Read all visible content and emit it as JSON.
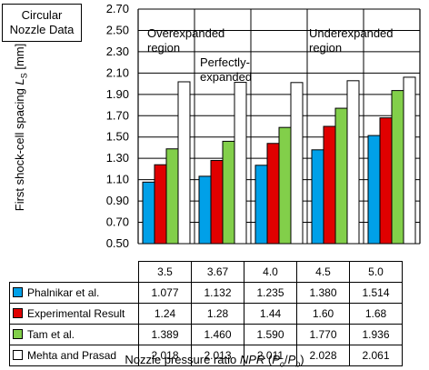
{
  "chart_data": {
    "type": "bar",
    "categories": [
      "3.5",
      "3.67",
      "4.0",
      "4.5",
      "5.0"
    ],
    "series": [
      {
        "name": "Phalnikar et al.",
        "color": "#00a0e8",
        "values": [
          1.077,
          1.132,
          1.235,
          1.38,
          1.514
        ],
        "labels": [
          "1.077",
          "1.132",
          "1.235",
          "1.380",
          "1.514"
        ]
      },
      {
        "name": "Experimental Result",
        "color": "#e00000",
        "values": [
          1.24,
          1.28,
          1.44,
          1.6,
          1.68
        ],
        "labels": [
          "1.24",
          "1.28",
          "1.44",
          "1.60",
          "1.68"
        ]
      },
      {
        "name": "Tam et al.",
        "color": "#82cf4a",
        "values": [
          1.389,
          1.46,
          1.59,
          1.77,
          1.936
        ],
        "labels": [
          "1.389",
          "1.460",
          "1.590",
          "1.770",
          "1.936"
        ]
      },
      {
        "name": "Mehta and Prasad",
        "color": "#ffffff",
        "values": [
          2.018,
          2.013,
          2.011,
          2.028,
          2.061
        ],
        "labels": [
          "2.018",
          "2.013",
          "2.011",
          "2.028",
          "2.061"
        ]
      }
    ],
    "ylim": [
      0.5,
      2.7
    ],
    "yticks": [
      "0.50",
      "0.70",
      "0.90",
      "1.10",
      "1.30",
      "1.50",
      "1.70",
      "1.90",
      "2.10",
      "2.30",
      "2.50",
      "2.70"
    ],
    "ylabel": {
      "main": "First shock-cell spacing ",
      "var": "L",
      "sub": "S",
      "unit": " [mm]"
    },
    "xlabel": {
      "main": "Nozzle pressure ratio ",
      "var": "NPR",
      "open": " (",
      "num": "P",
      "num_sub": "o",
      "slash": "/",
      "den": "P",
      "den_sub": "b",
      "close": ")"
    },
    "grid": true,
    "legend": "data-table"
  },
  "header_box": {
    "line1": "Circular",
    "line2": "Nozzle Data"
  },
  "regions": {
    "over_1": "Overexpanded",
    "over_2": "region",
    "perf_1": "Perfectly-",
    "perf_2": "expanded",
    "under_1": "Underexpanded",
    "under_2": "region"
  }
}
